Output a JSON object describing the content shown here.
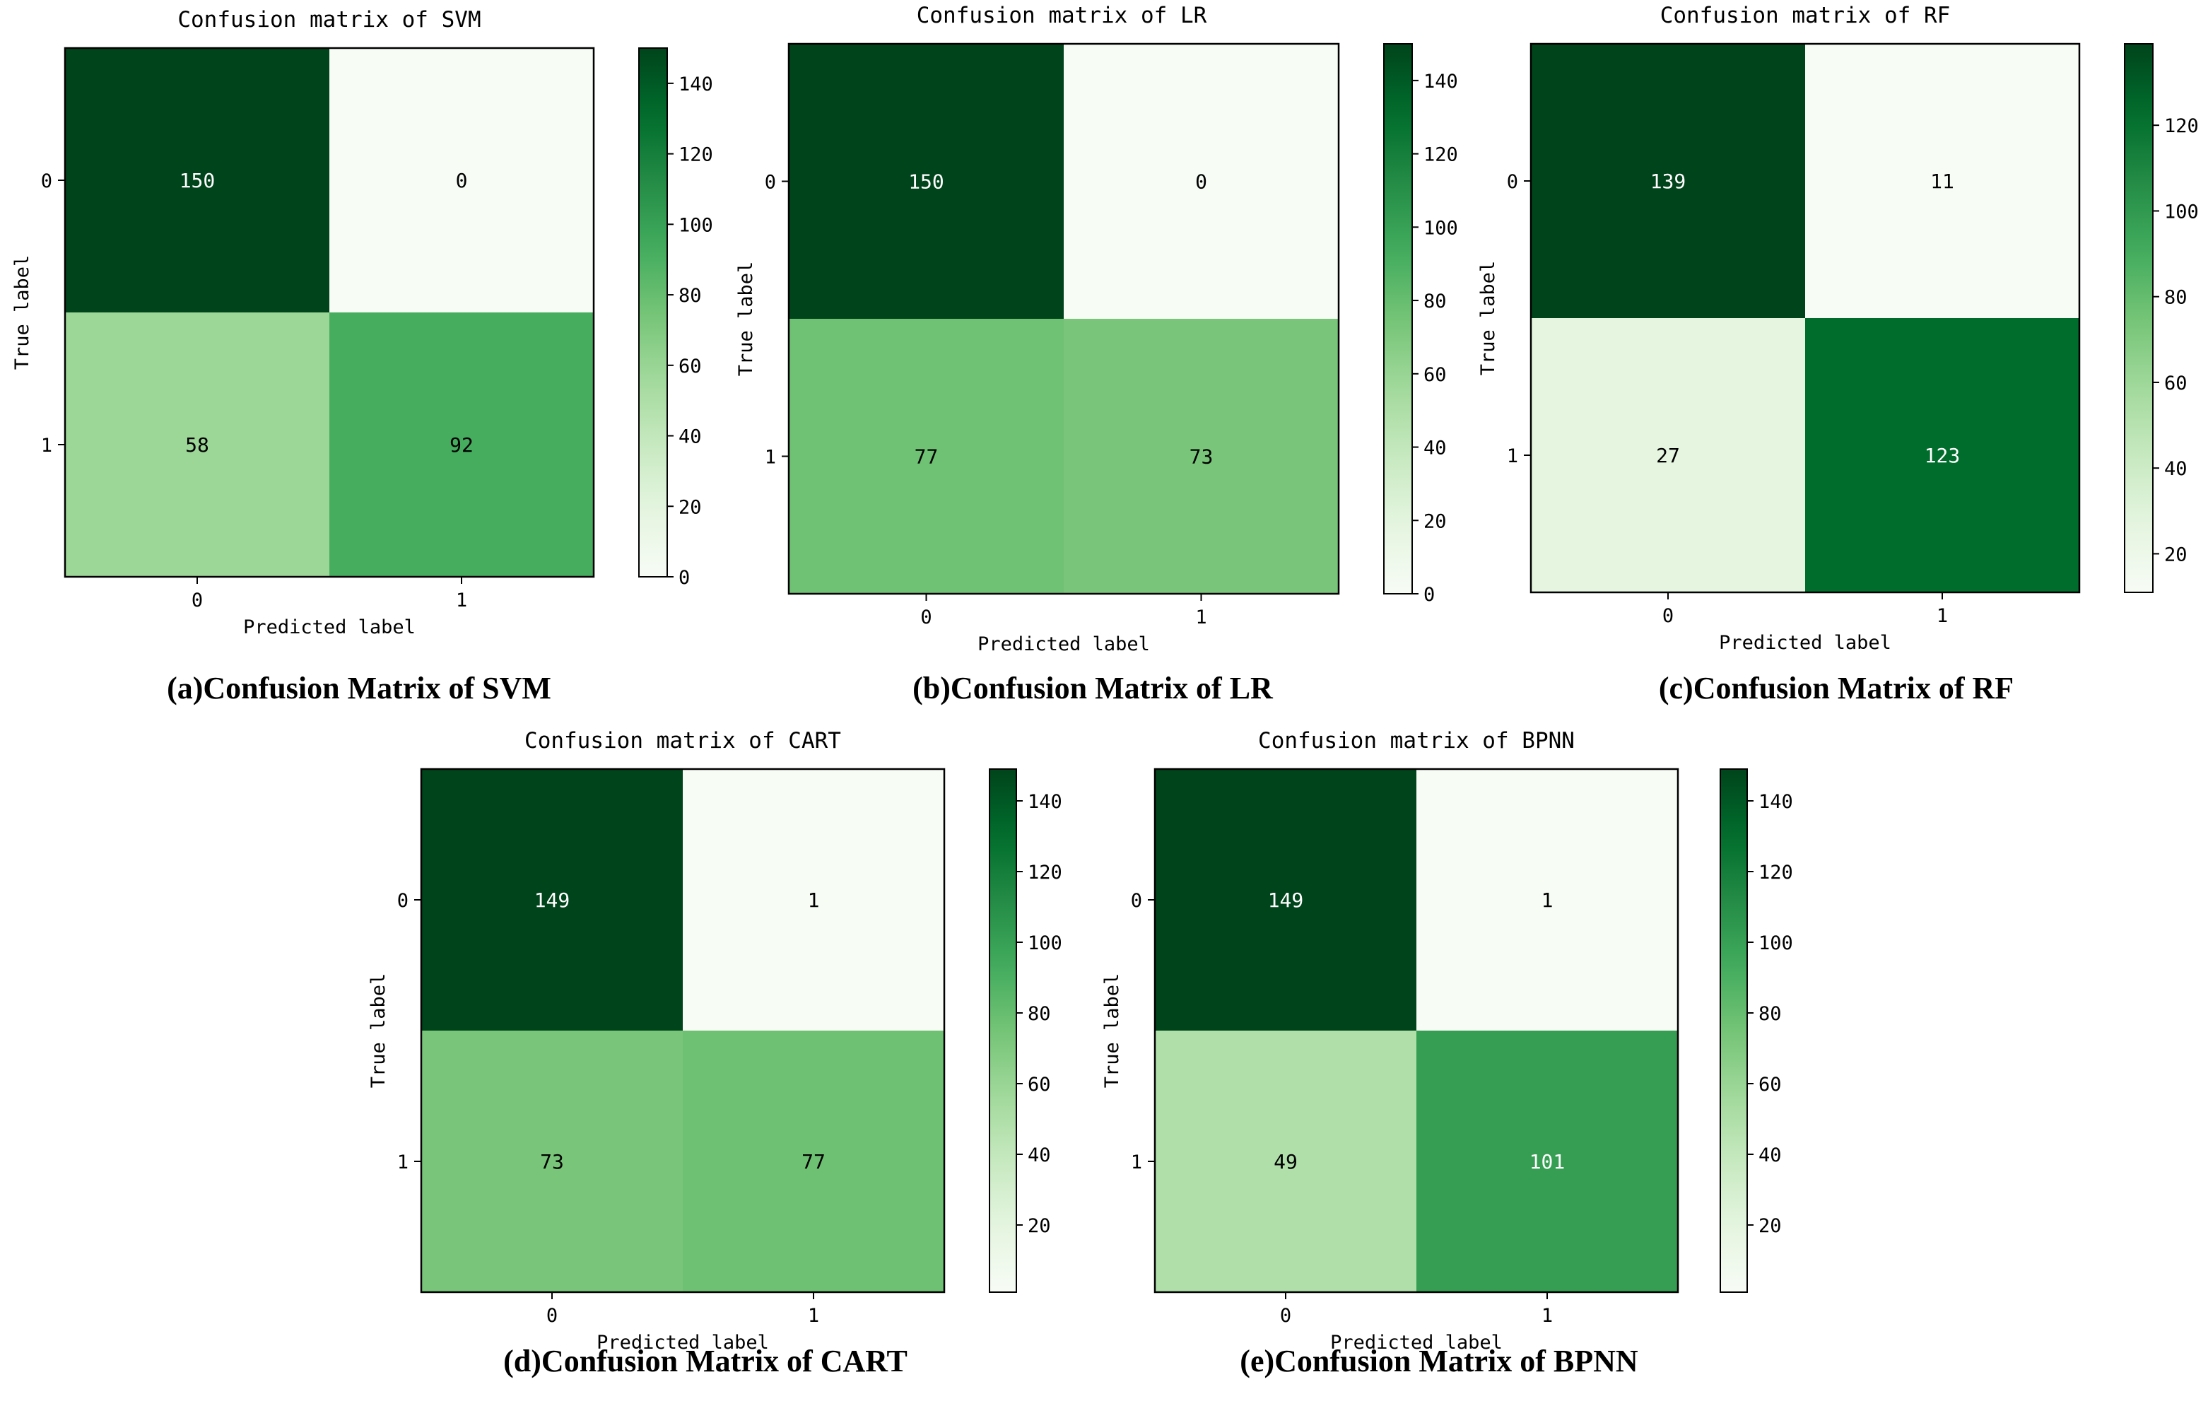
{
  "chart_data": [
    {
      "type": "heatmap",
      "title": "Confusion matrix of SVM",
      "caption": "(a)Confusion Matrix of SVM",
      "xlabel": "Predicted label",
      "ylabel": "True label",
      "x_ticks": [
        "0",
        "1"
      ],
      "y_ticks": [
        "0",
        "1"
      ],
      "matrix": [
        [
          150,
          0
        ],
        [
          58,
          92
        ]
      ],
      "colorbar": {
        "min": 0,
        "max": 150,
        "ticks": [
          0,
          20,
          40,
          60,
          80,
          100,
          120,
          140
        ]
      },
      "colormap": "Greens"
    },
    {
      "type": "heatmap",
      "title": "Confusion matrix of LR",
      "caption": "(b)Confusion Matrix of LR",
      "xlabel": "Predicted label",
      "ylabel": "True label",
      "x_ticks": [
        "0",
        "1"
      ],
      "y_ticks": [
        "0",
        "1"
      ],
      "matrix": [
        [
          150,
          0
        ],
        [
          77,
          73
        ]
      ],
      "colorbar": {
        "min": 0,
        "max": 150,
        "ticks": [
          0,
          20,
          40,
          60,
          80,
          100,
          120,
          140
        ]
      },
      "colormap": "Greens"
    },
    {
      "type": "heatmap",
      "title": "Confusion matrix of RF",
      "caption": "(c)Confusion Matrix of RF",
      "xlabel": "Predicted label",
      "ylabel": "True label",
      "x_ticks": [
        "0",
        "1"
      ],
      "y_ticks": [
        "0",
        "1"
      ],
      "matrix": [
        [
          139,
          11
        ],
        [
          27,
          123
        ]
      ],
      "colorbar": {
        "min": 11,
        "max": 139,
        "ticks": [
          20,
          40,
          60,
          80,
          100,
          120
        ]
      },
      "colormap": "Greens"
    },
    {
      "type": "heatmap",
      "title": "Confusion matrix of CART",
      "caption": "(d)Confusion Matrix of CART",
      "xlabel": "Predicted label",
      "ylabel": "True label",
      "x_ticks": [
        "0",
        "1"
      ],
      "y_ticks": [
        "0",
        "1"
      ],
      "matrix": [
        [
          149,
          1
        ],
        [
          73,
          77
        ]
      ],
      "colorbar": {
        "min": 1,
        "max": 149,
        "ticks": [
          20,
          40,
          60,
          80,
          100,
          120,
          140
        ]
      },
      "colormap": "Greens"
    },
    {
      "type": "heatmap",
      "title": "Confusion matrix of BPNN",
      "caption": "(e)Confusion Matrix of BPNN",
      "xlabel": "Predicted label",
      "ylabel": "True label",
      "x_ticks": [
        "0",
        "1"
      ],
      "y_ticks": [
        "0",
        "1"
      ],
      "matrix": [
        [
          149,
          1
        ],
        [
          49,
          101
        ]
      ],
      "colorbar": {
        "min": 1,
        "max": 149,
        "ticks": [
          20,
          40,
          60,
          80,
          100,
          120,
          140
        ]
      },
      "colormap": "Greens"
    }
  ]
}
